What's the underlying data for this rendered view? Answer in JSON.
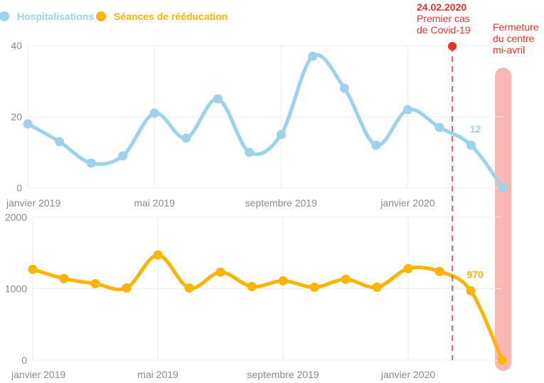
{
  "colors": {
    "hosp": "#9dd3ea",
    "seances": "#ffb400",
    "covid": "#e8332a",
    "closure": "#f9b8b4",
    "grid": "#ececec",
    "tick": "#8a8a8a"
  },
  "legend": [
    {
      "label": "Hospitalisations",
      "color": "#9dd3ea"
    },
    {
      "label": "Séances de rééducation",
      "color": "#ffb400"
    }
  ],
  "annotations": {
    "covid": {
      "date": "24.02.2020",
      "line1": "Premier cas",
      "line2": "de Covid-19",
      "x_month_index": 13.8
    },
    "closure": {
      "line1": "Fermeture",
      "line2": "du centre",
      "line3": "mi-avril",
      "x_month_index": 15
    }
  },
  "chart_data": [
    {
      "type": "line",
      "series": [
        {
          "name": "Hospitalisations",
          "values": [
            18,
            13,
            7,
            9,
            21,
            14,
            25,
            10,
            15,
            37,
            28,
            12,
            22,
            17,
            12,
            0
          ]
        }
      ],
      "x": [
        "2019-01",
        "2019-02",
        "2019-03",
        "2019-04",
        "2019-05",
        "2019-06",
        "2019-07",
        "2019-08",
        "2019-09",
        "2019-10",
        "2019-11",
        "2019-12",
        "2020-01",
        "2020-02",
        "2020-03",
        "2020-04"
      ],
      "xticks": [
        {
          "i": 0,
          "label": "janvier 2019"
        },
        {
          "i": 4,
          "label": "mai 2019"
        },
        {
          "i": 8,
          "label": "septembre 2019"
        },
        {
          "i": 12,
          "label": "janvier 2020"
        }
      ],
      "yticks": [
        0,
        20,
        40
      ],
      "ylim": [
        0,
        40
      ],
      "data_label": {
        "i": 14,
        "text": "12"
      },
      "grid": true
    },
    {
      "type": "line",
      "series": [
        {
          "name": "Séances de rééducation",
          "values": [
            1270,
            1140,
            1070,
            1010,
            1470,
            1010,
            1230,
            1030,
            1110,
            1020,
            1130,
            1020,
            1280,
            1240,
            970,
            0
          ]
        }
      ],
      "x": [
        "2019-01",
        "2019-02",
        "2019-03",
        "2019-04",
        "2019-05",
        "2019-06",
        "2019-07",
        "2019-08",
        "2019-09",
        "2019-10",
        "2019-11",
        "2019-12",
        "2020-01",
        "2020-02",
        "2020-03",
        "2020-04"
      ],
      "xticks": [
        {
          "i": 0,
          "label": "janvier 2019"
        },
        {
          "i": 4,
          "label": "mai 2019"
        },
        {
          "i": 8,
          "label": "septembre 2019"
        },
        {
          "i": 12,
          "label": "janvier 2020"
        }
      ],
      "yticks": [
        0,
        1000,
        2000
      ],
      "ylim": [
        0,
        2000
      ],
      "data_label": {
        "i": 14,
        "text": "970"
      },
      "grid": true
    }
  ]
}
